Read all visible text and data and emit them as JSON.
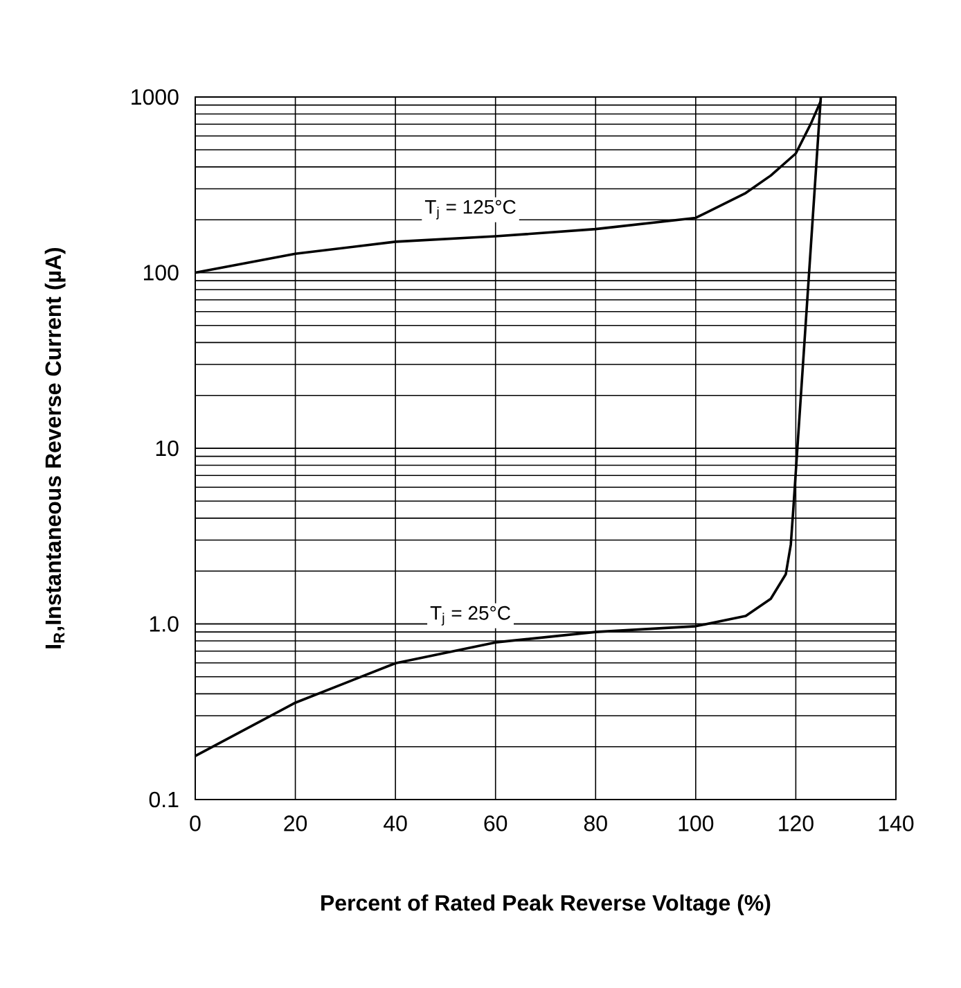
{
  "chart_data": {
    "type": "line",
    "xlabel": "Percent of Rated Peak Reverse Voltage (%)",
    "ylabel": "I$_{R}$,Instantaneous Reverse Current (µA)",
    "xlim": [
      0,
      140
    ],
    "ylim": [
      0.1,
      1000
    ],
    "log": "y",
    "grid": true,
    "marker": "none",
    "line_style": "solid",
    "xticks": [
      0,
      20,
      40,
      60,
      80,
      100,
      120,
      140
    ],
    "yticks": [
      0.1,
      {
        "value": 1,
        "label": "1.0"
      },
      10,
      100,
      1000
    ],
    "series": [
      {
        "name": "T$_{j}$ = 125°C",
        "color": "#000000",
        "x": [
          0,
          20,
          40,
          60,
          80,
          100,
          110,
          115,
          120,
          123,
          125
        ],
        "values": [
          100,
          128,
          150,
          161,
          177,
          205,
          284,
          357,
          477,
          704,
          950
        ]
      },
      {
        "name": "T$_{j}$ = 25°C",
        "color": "#000000",
        "x": [
          0,
          20,
          40,
          60,
          80,
          100,
          110,
          115,
          118,
          119,
          119.5,
          125
        ],
        "values": [
          0.177,
          0.356,
          0.597,
          0.785,
          0.9,
          0.97,
          1.11,
          1.39,
          1.92,
          2.83,
          4.5,
          1000
        ]
      }
    ]
  }
}
